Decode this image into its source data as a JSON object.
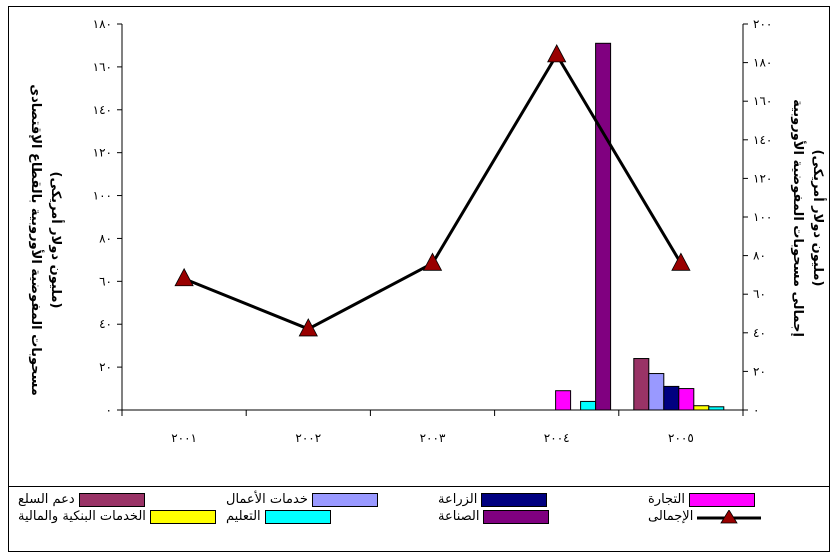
{
  "chart_data": {
    "type": "bar",
    "categories": [
      "٢٠٠١",
      "٢٠٠٢",
      "٢٠٠٣",
      "٢٠٠٤",
      "٢٠٠٥"
    ],
    "ylabel_left": "مسحوبات المفوضية الأوروبية بالقطاع الإقتصادى",
    "ylabel_left_unit": "(مليون دولار أمريكى)",
    "ylabel_right": "إجمالى مسحوبات المفوضية الأوروبية",
    "ylabel_right_unit": "(مليون دولار أمريكى)",
    "ylim_left": [
      0,
      180
    ],
    "ylim_right": [
      0,
      200
    ],
    "yticks_left": [
      "٠",
      "٢٠",
      "٤٠",
      "٦٠",
      "٨٠",
      "١٠٠",
      "١٢٠",
      "١٤٠",
      "١٦٠",
      "١٨٠"
    ],
    "yticks_right": [
      "٠",
      "٢٠",
      "٤٠",
      "٦٠",
      "٨٠",
      "١٠٠",
      "١٢٠",
      "١٤٠",
      "١٦٠",
      "١٨٠",
      "٢٠٠"
    ],
    "series": [
      {
        "name": "دعم السلع",
        "color": "#993366",
        "values": [
          0,
          0,
          0,
          0,
          24
        ]
      },
      {
        "name": "خدمات الأعمال",
        "color": "#9999FF",
        "values": [
          0,
          0,
          0,
          0,
          17
        ]
      },
      {
        "name": "الزراعة",
        "color": "#000080",
        "values": [
          0,
          0,
          0,
          0,
          11
        ]
      },
      {
        "name": "التجارة",
        "color": "#FF00FF",
        "values": [
          0,
          0,
          0,
          9,
          10
        ]
      },
      {
        "name": "الخدمات البنكية والمالية",
        "color": "#FFFF00",
        "values": [
          0,
          0,
          0,
          0,
          2
        ]
      },
      {
        "name": "التعليم",
        "color": "#00FFFF",
        "values": [
          0,
          0,
          0,
          4,
          1.5
        ]
      },
      {
        "name": "الصناعة",
        "color": "#800080",
        "values": [
          0,
          0,
          0,
          171,
          0
        ]
      }
    ],
    "total_series": {
      "name": "الإجمالى",
      "color": "#000000",
      "marker_color": "#990000",
      "values": [
        68,
        42,
        76,
        184,
        76
      ]
    },
    "grid": false,
    "legend_position": "bottom"
  }
}
